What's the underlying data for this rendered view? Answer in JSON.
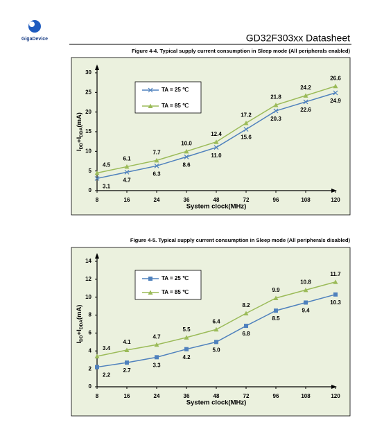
{
  "header": {
    "logo": "GigaDevice",
    "title": "GD32F303xx Datasheet"
  },
  "chart_data": [
    {
      "type": "line",
      "title": "Figure 4-4. Typical supply current consumption in Sleep mode (All peripherals enabled)",
      "xlabel": "System clock(MHz)",
      "ylabel": [
        "I",
        "DD",
        "+I",
        "DDA",
        "(mA)"
      ],
      "categories": [
        "8",
        "16",
        "24",
        "36",
        "48",
        "72",
        "96",
        "108",
        "120"
      ],
      "ylim": [
        0,
        30
      ],
      "yticks": [
        0,
        5,
        10,
        15,
        20,
        25,
        30
      ],
      "series": [
        {
          "name": "TA = 25 ℃",
          "color": "#4f81bd",
          "marker": "x",
          "values": [
            3.1,
            4.7,
            6.3,
            8.6,
            11.0,
            15.6,
            20.3,
            22.6,
            24.9
          ],
          "value_labels": [
            "3.1",
            "4.7",
            "6.3",
            "8.6",
            "11.0",
            "15.6",
            "20.3",
            "22.6",
            "24.9"
          ]
        },
        {
          "name": "TA = 85 ℃",
          "color": "#9bbb59",
          "marker": "triangle",
          "values": [
            4.5,
            6.1,
            7.7,
            10.0,
            12.4,
            17.2,
            21.8,
            24.2,
            26.6
          ],
          "value_labels": [
            "4.5",
            "6.1",
            "7.7",
            "10.0",
            "12.4",
            "17.2",
            "21.8",
            "24.2",
            "26.6"
          ]
        }
      ]
    },
    {
      "type": "line",
      "title": "Figure 4-5. Typical supply current consumption in Sleep mode (All peripherals disabled)",
      "xlabel": "System clock(MHz)",
      "ylabel": [
        "I",
        "DD",
        "+I",
        "DDA",
        "(mA)"
      ],
      "categories": [
        "8",
        "16",
        "24",
        "36",
        "48",
        "72",
        "96",
        "108",
        "120"
      ],
      "ylim": [
        0,
        14
      ],
      "yticks": [
        0,
        2,
        4,
        6,
        8,
        10,
        12,
        14
      ],
      "series": [
        {
          "name": "TA = 25 ℃",
          "color": "#4f81bd",
          "marker": "square",
          "values": [
            2.2,
            2.7,
            3.3,
            4.2,
            5.0,
            6.8,
            8.5,
            9.4,
            10.3
          ],
          "value_labels": [
            "2.2",
            "2.7",
            "3.3",
            "4.2",
            "5.0",
            "6.8",
            "8.5",
            "9.4",
            "10.3"
          ]
        },
        {
          "name": "TA = 85 ℃",
          "color": "#9bbb59",
          "marker": "triangle",
          "values": [
            3.4,
            4.1,
            4.7,
            5.5,
            6.4,
            8.2,
            9.9,
            10.8,
            11.7
          ],
          "value_labels": [
            "3.4",
            "4.1",
            "4.7",
            "5.5",
            "6.4",
            "8.2",
            "9.9",
            "10.8",
            "11.7"
          ]
        }
      ]
    }
  ]
}
